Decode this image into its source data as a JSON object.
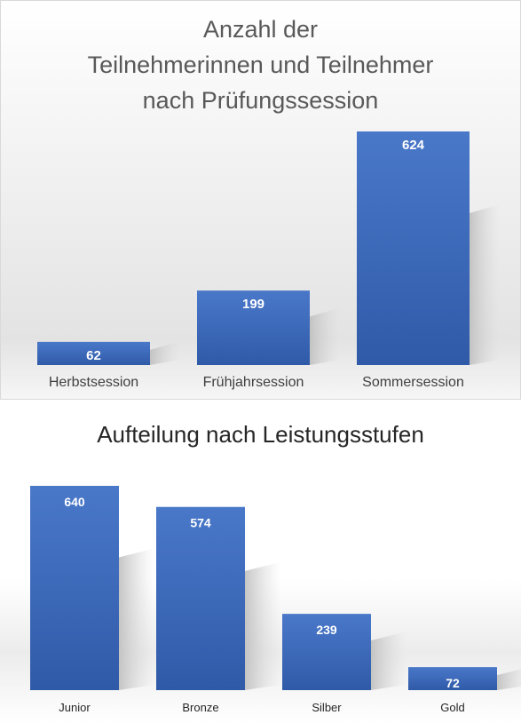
{
  "charts": [
    {
      "title": "Anzahl der\nTeilnehmerinnen und Teilnehmer\nnach Prüfungssession",
      "chart_data": {
        "type": "bar",
        "title": "Anzahl der Teilnehmerinnen und Teilnehmer nach Prüfungssession",
        "categories": [
          "Herbstsession",
          "Frühjahrsession",
          "Sommersession"
        ],
        "values": [
          62,
          199,
          624
        ],
        "ylim": [
          0,
          624
        ],
        "grid": false,
        "legend": "none",
        "bar_color": "#4472C4",
        "data_labels": true
      }
    },
    {
      "title": "Aufteilung nach Leistungsstufen",
      "chart_data": {
        "type": "bar",
        "title": "Aufteilung nach Leistungsstufen",
        "categories": [
          "Junior",
          "Bronze",
          "Silber",
          "Gold"
        ],
        "values": [
          640,
          574,
          239,
          72
        ],
        "ylim": [
          0,
          640
        ],
        "grid": false,
        "legend": "none",
        "bar_color": "#4472C4",
        "data_labels": true
      }
    }
  ]
}
